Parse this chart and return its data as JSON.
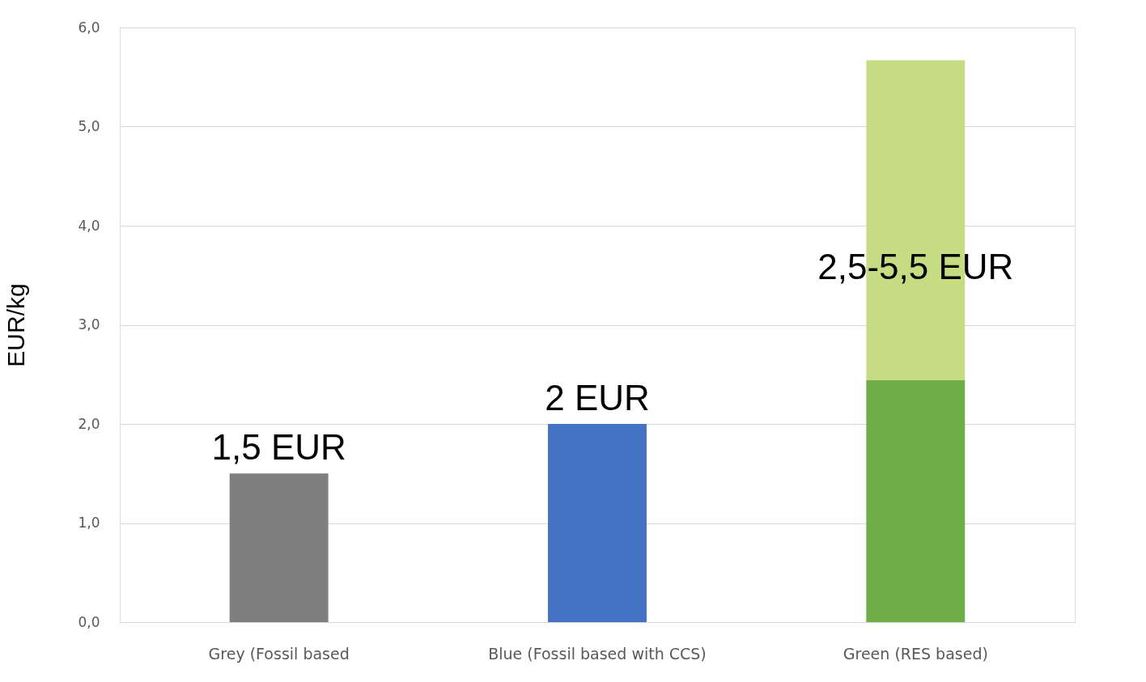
{
  "chart_data": {
    "type": "bar",
    "stacked": true,
    "ylabel": "EUR/kg",
    "categories": [
      "Grey (Fossil based",
      "Blue (Fossil based with CCS)",
      "Green (RES based)"
    ],
    "series": [
      {
        "colors": [
          "#7f7f7f",
          "#4472c4",
          "#70ad47"
        ],
        "values": [
          1.5,
          2.0,
          2.44
        ]
      },
      {
        "color": "#c5dc82",
        "values": [
          null,
          null,
          3.23
        ]
      }
    ],
    "ylim": [
      0,
      6
    ],
    "yticks": [
      {
        "value": 0,
        "label": "0,0"
      },
      {
        "value": 1,
        "label": "1,0"
      },
      {
        "value": 2,
        "label": "2,0"
      },
      {
        "value": 3,
        "label": "3,0"
      },
      {
        "value": 4,
        "label": "4,0"
      },
      {
        "value": 5,
        "label": "5,0"
      },
      {
        "value": 6,
        "label": "6,0"
      }
    ],
    "grid": "y",
    "legend": false,
    "annotations": [
      {
        "text": "1,5 EUR",
        "x": "Grey (Fossil based",
        "y": 1.5
      },
      {
        "text": "2 EUR",
        "x": "Blue (Fossil based with CCS)",
        "y": 2.0
      },
      "2,5-5,5 EUR"
    ]
  }
}
